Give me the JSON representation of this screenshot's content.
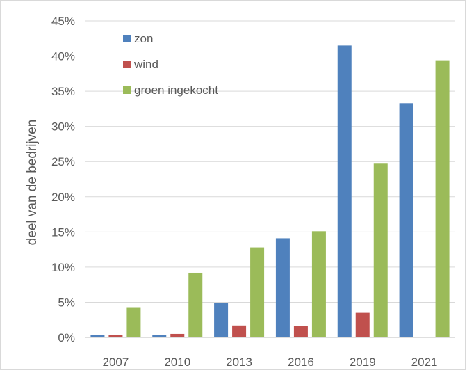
{
  "chart_data": {
    "type": "bar",
    "title": "",
    "xlabel": "",
    "ylabel": "deel van de bedrijven",
    "categories": [
      "2007",
      "2010",
      "2013",
      "2016",
      "2019",
      "2021"
    ],
    "ylim": [
      0,
      45
    ],
    "yticks": [
      0,
      5,
      10,
      15,
      20,
      25,
      30,
      35,
      40,
      45
    ],
    "ytick_labels": [
      "0%",
      "5%",
      "10%",
      "15%",
      "20%",
      "25%",
      "30%",
      "35%",
      "40%",
      "45%"
    ],
    "grid": true,
    "legend_position": "top-left",
    "series": [
      {
        "name": "zon",
        "color": "#4f81bd",
        "values": [
          0.3,
          0.3,
          4.9,
          14.1,
          41.5,
          33.3
        ]
      },
      {
        "name": "wind",
        "color": "#c0504d",
        "values": [
          0.3,
          0.5,
          1.7,
          1.6,
          3.5,
          0
        ]
      },
      {
        "name": "groen ingekocht",
        "color": "#9bbb59",
        "values": [
          4.3,
          9.2,
          12.8,
          15.1,
          24.7,
          39.4
        ]
      }
    ]
  }
}
